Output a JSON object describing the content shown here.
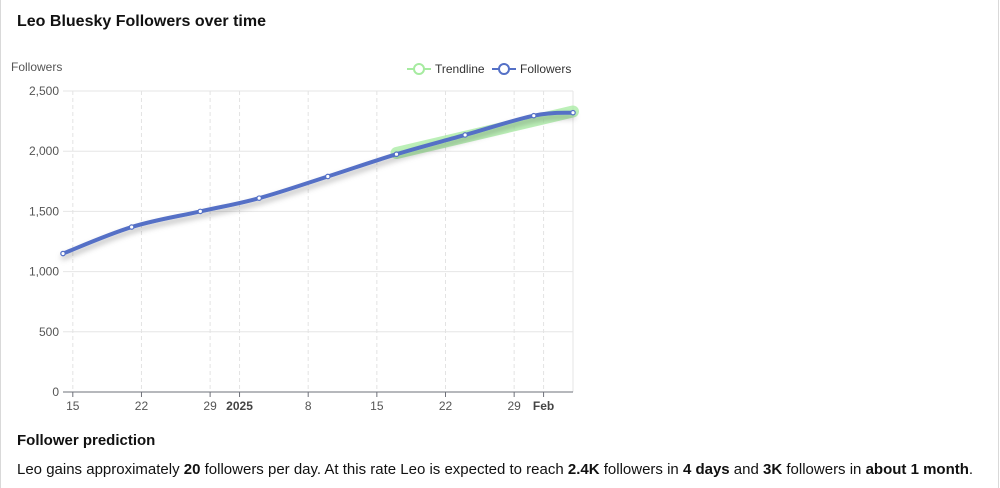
{
  "page": {
    "title": "Leo Bluesky Followers over time"
  },
  "chart_data": {
    "type": "line",
    "ylabel": "Followers",
    "xlabel": "",
    "ylim": [
      0,
      2500
    ],
    "y_ticks": [
      0,
      500,
      1000,
      1500,
      2000,
      2500
    ],
    "y_tick_labels": [
      "0",
      "500",
      "1,000",
      "1,500",
      "2,000",
      "2,500"
    ],
    "x_range": [
      "2024-12-14",
      "2025-02-04"
    ],
    "x_ticks": [
      {
        "date": "2024-12-15",
        "label": "15",
        "bold": false
      },
      {
        "date": "2024-12-22",
        "label": "22",
        "bold": false
      },
      {
        "date": "2024-12-29",
        "label": "29",
        "bold": false
      },
      {
        "date": "2025-01-01",
        "label": "2025",
        "bold": true
      },
      {
        "date": "2025-01-08",
        "label": "8",
        "bold": false
      },
      {
        "date": "2025-01-15",
        "label": "15",
        "bold": false
      },
      {
        "date": "2025-01-22",
        "label": "22",
        "bold": false
      },
      {
        "date": "2025-01-29",
        "label": "29",
        "bold": false
      },
      {
        "date": "2025-02-01",
        "label": "Feb",
        "bold": true
      }
    ],
    "grid": true,
    "legend_position": "top-right",
    "series": [
      {
        "name": "Trendline",
        "color": "#a6eba0",
        "points": [
          {
            "x": "2025-01-17",
            "y": 1985
          },
          {
            "x": "2025-02-04",
            "y": 2330
          }
        ]
      },
      {
        "name": "Followers",
        "color": "#5470c6",
        "points": [
          {
            "x": "2024-12-14",
            "y": 1150
          },
          {
            "x": "2024-12-21",
            "y": 1370
          },
          {
            "x": "2024-12-28",
            "y": 1500
          },
          {
            "x": "2025-01-03",
            "y": 1610
          },
          {
            "x": "2025-01-10",
            "y": 1790
          },
          {
            "x": "2025-01-17",
            "y": 1975
          },
          {
            "x": "2025-01-24",
            "y": 2135
          },
          {
            "x": "2025-01-31",
            "y": 2295
          },
          {
            "x": "2025-02-04",
            "y": 2320
          }
        ]
      }
    ]
  },
  "prediction": {
    "heading": "Follower prediction",
    "s1": "Leo gains approximately ",
    "rate": "20",
    "s2": " followers per day. At this rate Leo is expected to reach ",
    "target1": "2.4K",
    "s3": " followers in ",
    "time1": "4 days",
    "s4": " and ",
    "target2": "3K",
    "s5": " followers in ",
    "time2": "about 1 month",
    "s6": "."
  }
}
